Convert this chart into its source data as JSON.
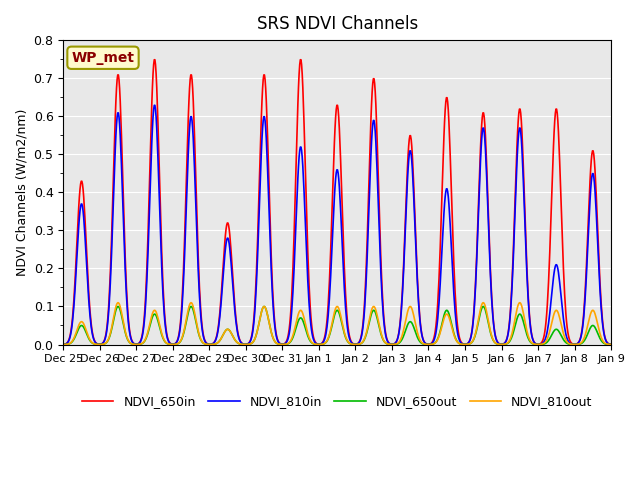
{
  "title": "SRS NDVI Channels",
  "ylabel": "NDVI Channels (W/m2/nm)",
  "ylim": [
    0.0,
    0.8
  ],
  "yticks": [
    0.0,
    0.1,
    0.2,
    0.3,
    0.4,
    0.5,
    0.6,
    0.7,
    0.8
  ],
  "annotation_text": "WP_met",
  "annotation_color": "#8B0000",
  "annotation_bg": "#FFFACD",
  "annotation_border": "#999900",
  "series_names": [
    "NDVI_650in",
    "NDVI_810in",
    "NDVI_650out",
    "NDVI_810out"
  ],
  "series_colors": [
    "#FF0000",
    "#0000FF",
    "#00BB00",
    "#FFA500"
  ],
  "series_lw": [
    1.2,
    1.2,
    1.2,
    1.2
  ],
  "bg_color": "#E8E8E8",
  "fig_bg": "#FFFFFF",
  "day_labels": [
    "Dec 25",
    "Dec 26",
    "Dec 27",
    "Dec 28",
    "Dec 29",
    "Dec 30",
    "Dec 31",
    "Jan 1",
    "Jan 2",
    "Jan 3",
    "Jan 4",
    "Jan 5",
    "Jan 6",
    "Jan 7",
    "Jan 8",
    "Jan 9"
  ],
  "peaks_NDVI_650in": [
    0.43,
    0.71,
    0.75,
    0.71,
    0.32,
    0.71,
    0.75,
    0.63,
    0.7,
    0.55,
    0.65,
    0.61,
    0.62,
    0.62,
    0.51
  ],
  "peaks_NDVI_810in": [
    0.37,
    0.61,
    0.63,
    0.6,
    0.28,
    0.6,
    0.52,
    0.46,
    0.59,
    0.51,
    0.41,
    0.57,
    0.57,
    0.21,
    0.45
  ],
  "peaks_NDVI_650out": [
    0.05,
    0.1,
    0.08,
    0.1,
    0.04,
    0.1,
    0.07,
    0.09,
    0.09,
    0.06,
    0.09,
    0.1,
    0.08,
    0.04,
    0.05
  ],
  "peaks_NDVI_810out": [
    0.06,
    0.11,
    0.09,
    0.11,
    0.04,
    0.1,
    0.09,
    0.1,
    0.1,
    0.1,
    0.08,
    0.11,
    0.11,
    0.09,
    0.09
  ]
}
